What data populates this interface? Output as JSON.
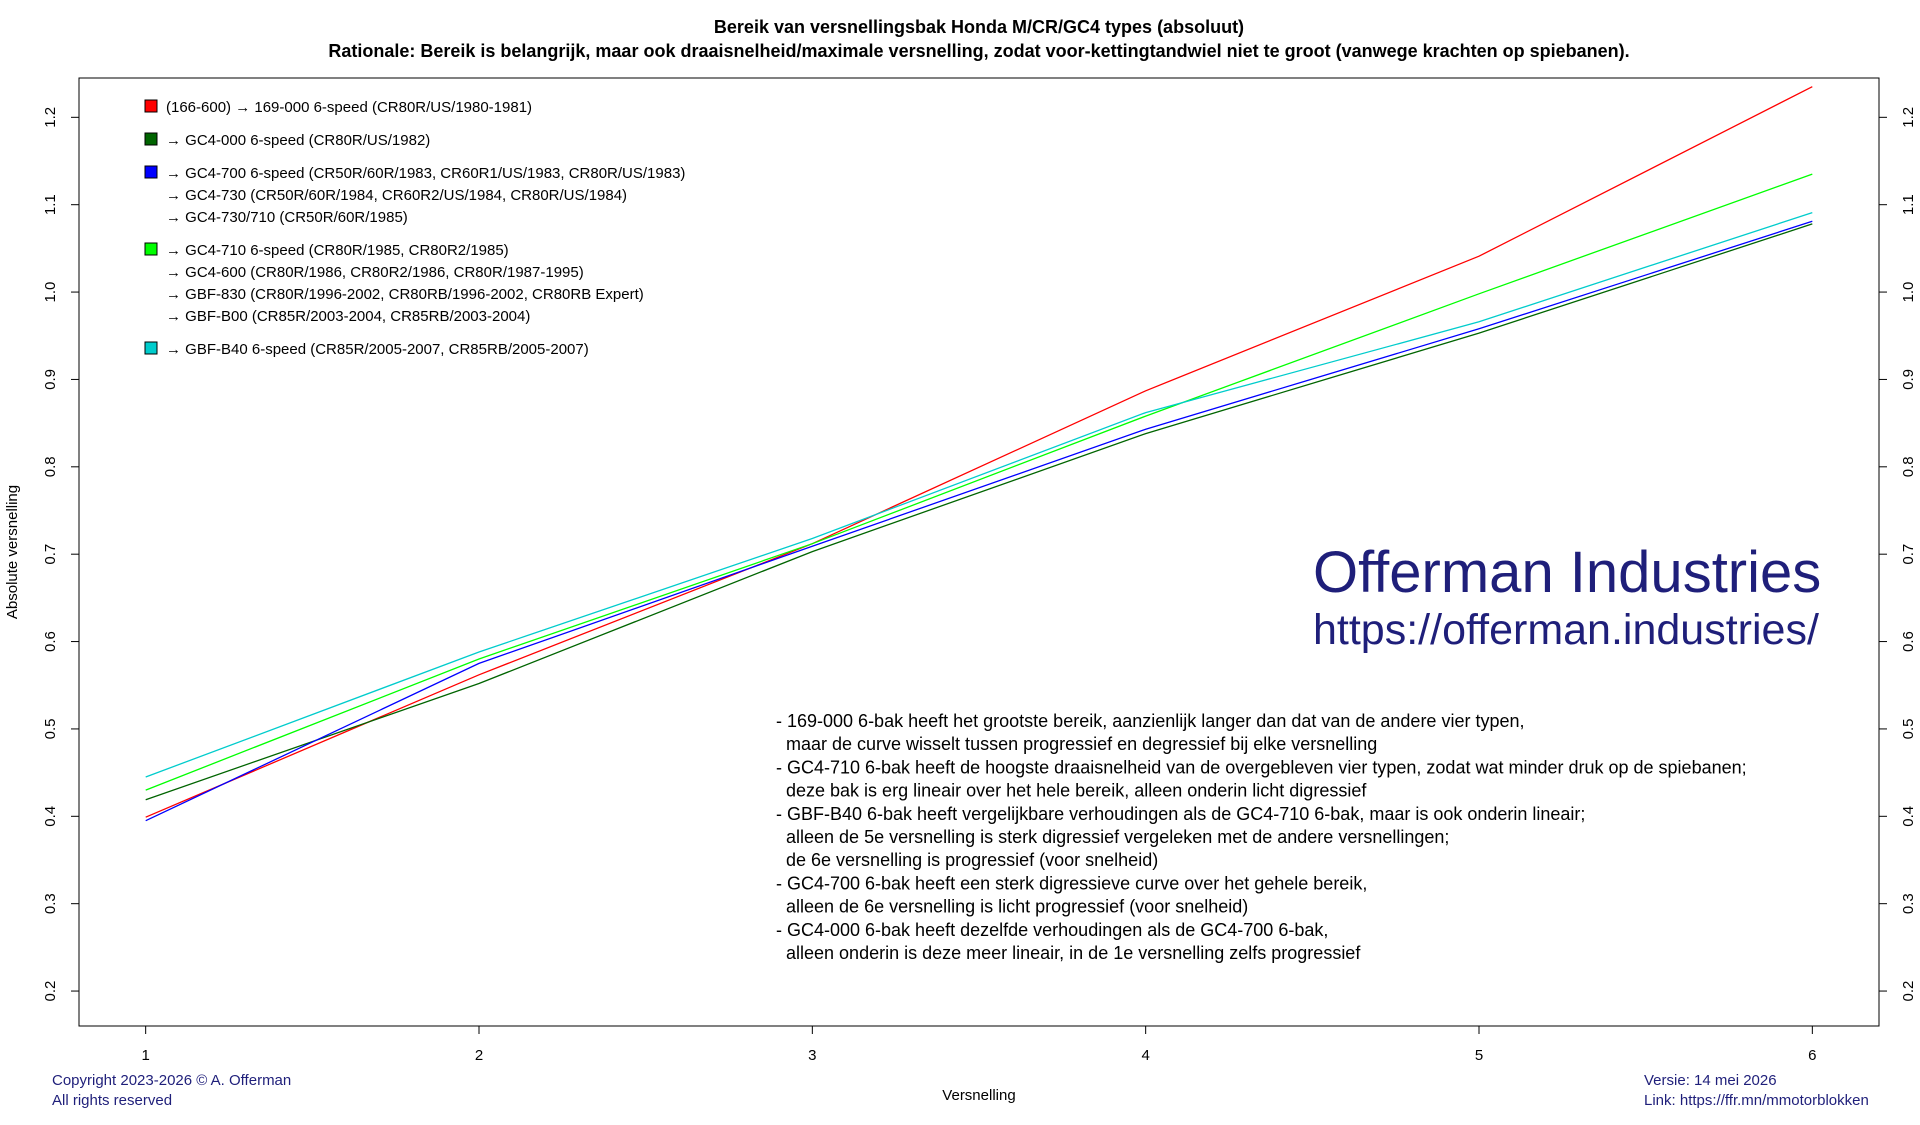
{
  "chart_data": {
    "type": "line",
    "title": "Bereik van versnellingsbak Honda M/CR/GC4 types (absoluut)",
    "subtitle": "Rationale: Bereik is belangrijk, maar ook draaisnelheid/maximale versnelling, zodat voor-kettingtandwiel niet te groot (vanwege krachten op spiebanen).",
    "xlabel": "Versnelling",
    "ylabel": "Absolute versnelling",
    "x": [
      1,
      2,
      3,
      4,
      5,
      6
    ],
    "xlim": [
      0.8,
      6.2
    ],
    "ylim": [
      0.16,
      1.245
    ],
    "x_ticks": [
      "1",
      "2",
      "3",
      "4",
      "5",
      "6"
    ],
    "y_ticks": [
      "0.2",
      "0.3",
      "0.4",
      "0.5",
      "0.6",
      "0.7",
      "0.8",
      "0.9",
      "1.0",
      "1.1",
      "1.2"
    ],
    "grid": false,
    "legend_position": "top-left",
    "series": [
      {
        "color": "#ff0000",
        "values": [
          0.399,
          0.562,
          0.712,
          0.887,
          1.041,
          1.235
        ]
      },
      {
        "color": "#006400",
        "values": [
          0.419,
          0.552,
          0.703,
          0.838,
          0.953,
          1.078
        ]
      },
      {
        "color": "#0000ff",
        "values": [
          0.395,
          0.575,
          0.709,
          0.843,
          0.958,
          1.081
        ]
      },
      {
        "color": "#00ff00",
        "values": [
          0.43,
          0.58,
          0.712,
          0.858,
          0.998,
          1.135
        ]
      },
      {
        "color": "#00cccc",
        "values": [
          0.445,
          0.588,
          0.718,
          0.862,
          0.966,
          1.091
        ]
      }
    ],
    "legend": [
      {
        "color": "#ff0000",
        "lines": [
          "(166-600) → 169-000 6-speed (CR80R/US/1980-1981)"
        ]
      },
      {
        "color": "#006400",
        "lines": [
          "→ GC4-000 6-speed (CR80R/US/1982)"
        ]
      },
      {
        "color": "#0000ff",
        "lines": [
          "→ GC4-700 6-speed (CR50R/60R/1983, CR60R1/US/1983, CR80R/US/1983)",
          "→ GC4-730 (CR50R/60R/1984, CR60R2/US/1984, CR80R/US/1984)",
          "→ GC4-730/710 (CR50R/60R/1985)"
        ]
      },
      {
        "color": "#00ff00",
        "lines": [
          "→ GC4-710 6-speed (CR80R/1985, CR80R2/1985)",
          "→ GC4-600 (CR80R/1986, CR80R2/1986, CR80R/1987-1995)",
          "→ GBF-830 (CR80R/1996-2002, CR80RB/1996-2002, CR80RB Expert)",
          "→ GBF-B00 (CR85R/2003-2004, CR85RB/2003-2004)"
        ]
      },
      {
        "color": "#00cccc",
        "lines": [
          "→ GBF-B40 6-speed (CR85R/2005-2007, CR85RB/2005-2007)"
        ]
      }
    ],
    "annotation_lines": [
      "- 169-000 6-bak heeft het grootste bereik, aanzienlijk langer dan dat van de andere vier typen,",
      "  maar de curve wisselt tussen progressief en degressief bij elke versnelling",
      "- GC4-710 6-bak heeft de hoogste draaisnelheid van de overgebleven vier typen, zodat wat minder druk op de spiebanen;",
      "  deze bak is erg lineair over het hele bereik, alleen onderin licht digressief",
      "- GBF-B40 6-bak heeft vergelijkbare verhoudingen als de GC4-710 6-bak, maar is ook onderin lineair;",
      "  alleen de 5e versnelling is sterk digressief vergeleken met de andere versnellingen;",
      "  de 6e versnelling is progressief (voor snelheid)",
      "- GC4-700 6-bak heeft een sterk digressieve curve over het gehele bereik,",
      "  alleen de 6e versnelling is licht progressief (voor snelheid)",
      "- GC4-000 6-bak heeft dezelfde verhoudingen als de GC4-700 6-bak,",
      "  alleen onderin is deze meer lineair, in de 1e versnelling zelfs progressief"
    ]
  },
  "watermark": {
    "name": "Offerman Industries",
    "url": "https://offerman.industries/"
  },
  "footer": {
    "copyright": "Copyright 2023-2026 © A. Offerman",
    "rights": "All rights reserved",
    "version": "Versie: 14 mei 2026",
    "link": "Link: https://ffr.mn/mmotorblokken"
  }
}
